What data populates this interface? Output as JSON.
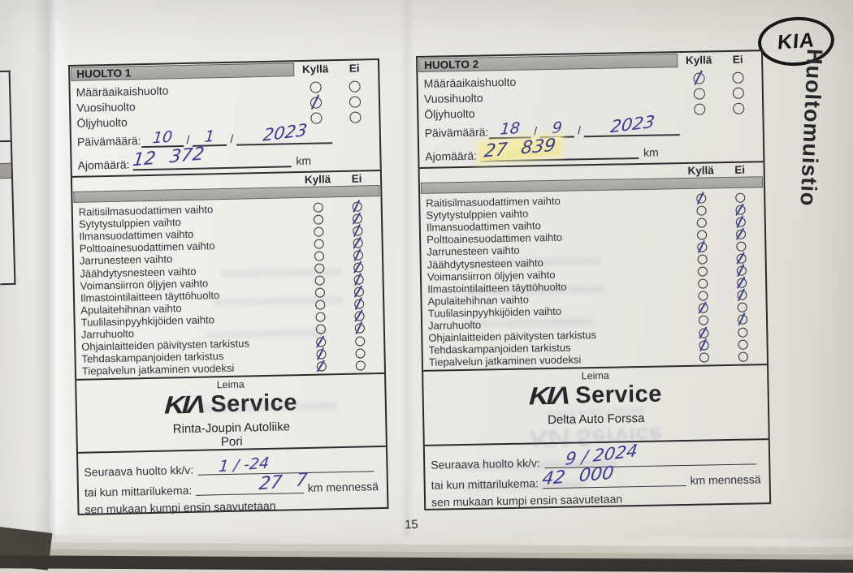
{
  "page": {
    "number": "15",
    "side_title": "Huoltomuistio",
    "brand_oval": "KIA"
  },
  "labels": {
    "kylla": "Kyllä",
    "ei": "Ei",
    "date_label": "Päivämäärä:",
    "mileage_label": "Ajomäärä:",
    "slash": "/",
    "km": "km",
    "leima": "Leima",
    "kia_logo": "KIΛ",
    "service": "Service",
    "next_service": "Seuraava huolto kk/v:",
    "next_km_label": "tai kun mittarilukema:",
    "km_by": "km mennessä",
    "whichever_first": "sen mukaan kumpi ensin saavutetaan"
  },
  "top_items": [
    "Määräaikaishuolto",
    "Vuosihuolto",
    "Öljyhuolto"
  ],
  "checklist_items": [
    "Raitisilmasuodattimen vaihto",
    "Sytytystulppien vaihto",
    "Ilmansuodattimen vaihto",
    "Polttoainesuodattimen vaihto",
    "Jarrunesteen vaihto",
    "Jäähdytysnesteen vaihto",
    "Voimansiirron öljyjen vaihto",
    "Ilmastointilaitteen täyttöhuolto",
    "Apulaitehihnan vaihto",
    "Tuulilasinpyyhkijöiden vaihto",
    "Jarruhuolto",
    "Ohjainlaitteiden päivitysten tarkistus",
    "Tehdaskampanjoiden tarkistus",
    "Tiepalvelun jatkaminen vuodeksi"
  ],
  "huolto1": {
    "title": "HUOLTO 1",
    "top_checks": [
      "",
      "kylla",
      ""
    ],
    "date": {
      "day": "10",
      "month": "1",
      "year": "2023"
    },
    "mileage": "12 372",
    "checks": [
      "ei",
      "ei",
      "ei",
      "ei",
      "ei",
      "ei",
      "ei",
      "ei",
      "ei",
      "ei",
      "ei",
      "kylla",
      "kylla",
      "kylla"
    ],
    "stamp": {
      "line1": "Rinta-Joupin Autoliike",
      "line2": "Pori"
    },
    "next_date": "1 / -24",
    "next_km": "27 7"
  },
  "huolto2": {
    "title": "HUOLTO 2",
    "top_checks": [
      "kylla",
      "",
      ""
    ],
    "date": {
      "day": "18",
      "month": "9",
      "year": "2023"
    },
    "mileage": "27 839",
    "checks": [
      "kylla",
      "ei",
      "ei",
      "ei",
      "kylla",
      "ei",
      "ei",
      "ei",
      "ei",
      "kylla",
      "ei",
      "kylla",
      "kylla",
      ""
    ],
    "stamp": {
      "line1": "Delta Auto Forssa",
      "line2": ""
    },
    "next_date": "9 / 2024",
    "next_km": "42 000"
  },
  "pen_color": "#3f3e99",
  "highlight_color": "#f3eca9"
}
